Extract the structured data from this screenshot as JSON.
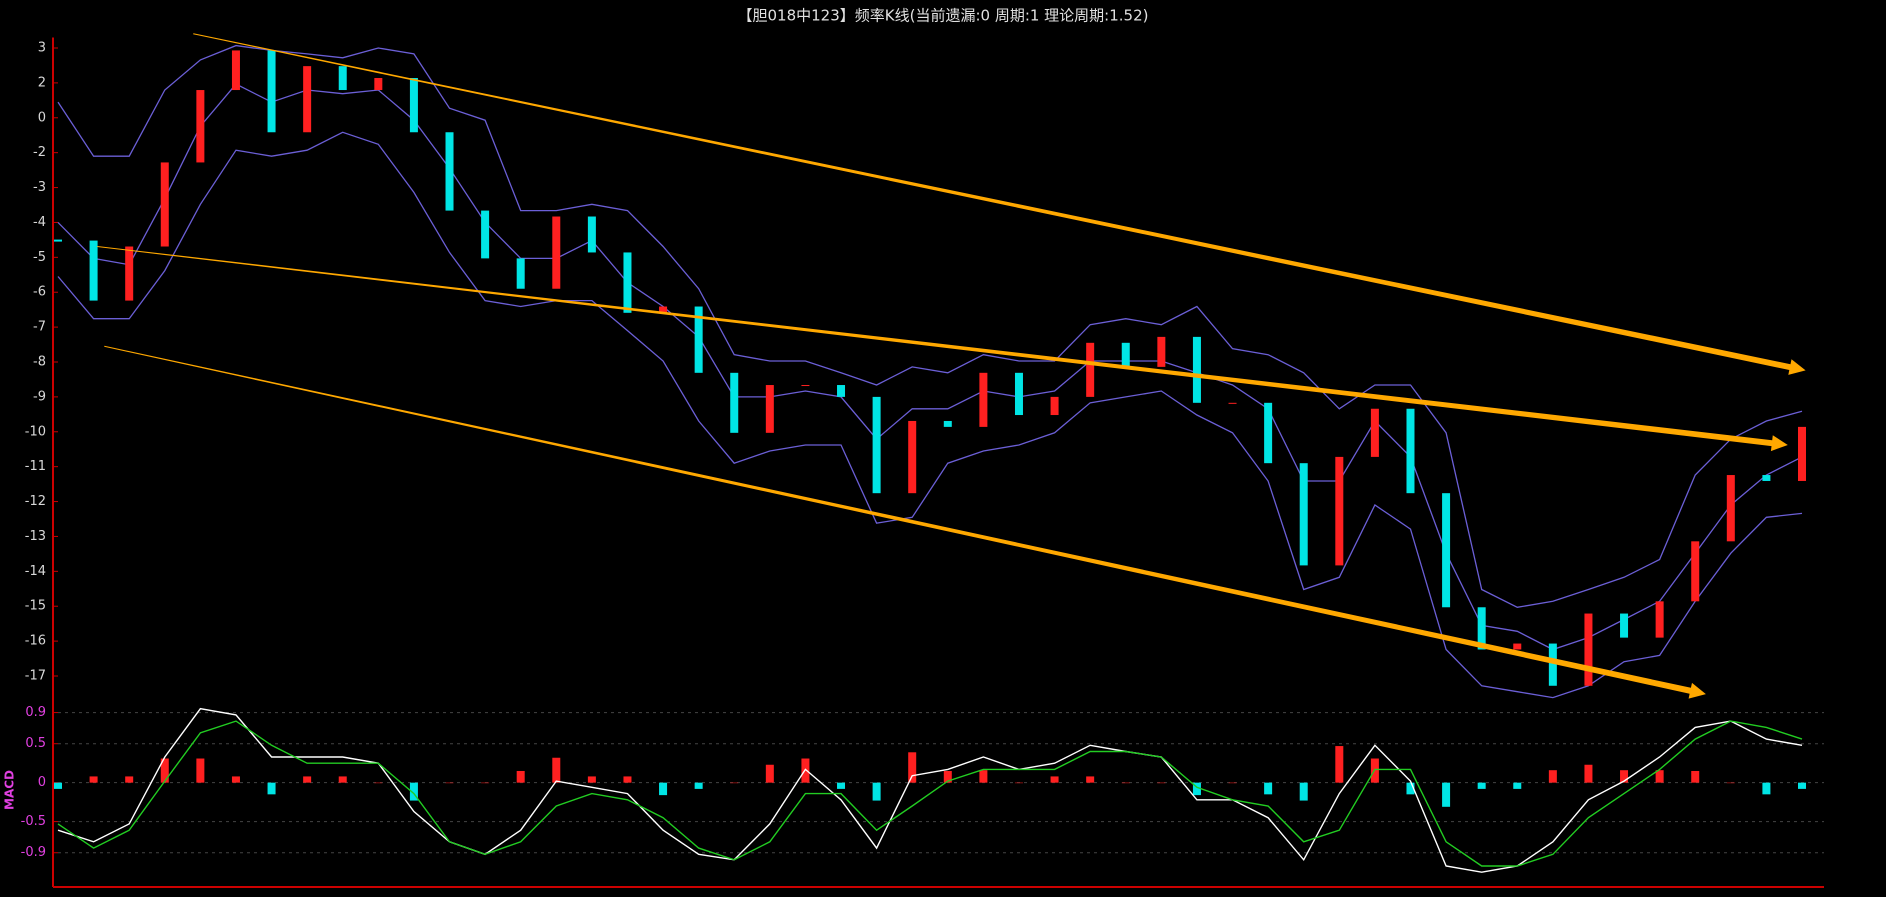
{
  "chart_data": [
    {
      "type": "candlestick",
      "title": "【胆018中123】频率K线(当前遗漏:0 周期:1 理论周期:1.52)",
      "values": [
        -4.52,
        -6.24,
        -4.69,
        -2.28,
        1.59,
        2.93,
        -0.83,
        2.48,
        1.59,
        2.14,
        -0.83,
        -3.66,
        -5.03,
        -5.9,
        -3.83,
        -4.86,
        -6.59,
        -6.41,
        -8.31,
        -10.03,
        -8.66,
        -8.66,
        -9.0,
        -11.76,
        -9.69,
        -9.86,
        -8.31,
        -9.52,
        -9.0,
        -7.45,
        -8.14,
        -7.28,
        -9.17,
        -9.17,
        -10.9,
        -13.83,
        -10.72,
        -9.34,
        -11.76,
        -15.03,
        -16.24,
        -16.07,
        -17.28,
        -15.21,
        -15.9,
        -14.86,
        -13.14,
        -11.24,
        -11.41,
        -9.86
      ],
      "upper": [
        0.9,
        -2.1,
        -2.1,
        1.59,
        2.66,
        3.07,
        2.93,
        2.83,
        2.72,
        3,
        2.83,
        0.55,
        -0.14,
        -3.66,
        -3.66,
        -3.48,
        -3.66,
        -4.69,
        -5.9,
        -7.79,
        -7.97,
        -7.97,
        -8.31,
        -8.66,
        -8.14,
        -8.31,
        -7.79,
        -7.97,
        -7.97,
        -6.93,
        -6.76,
        -6.93,
        -6.41,
        -7.62,
        -7.79,
        -8.31,
        -9.34,
        -8.66,
        -8.66,
        -10.03,
        -14.52,
        -15.03,
        -14.86,
        -14.52,
        -14.17,
        -13.66,
        -11.24,
        -10.21,
        -9.69,
        -9.41
      ],
      "middle": [
        -4.0,
        -5.03,
        -5.21,
        -3.31,
        -0.48,
        1.93,
        0.9,
        1.59,
        1.38,
        1.59,
        -0.14,
        -2.45,
        -4.0,
        -5.03,
        -5.03,
        -4.52,
        -5.72,
        -6.41,
        -7.28,
        -9.0,
        -9.0,
        -8.83,
        -9.0,
        -10.21,
        -9.34,
        -9.34,
        -8.83,
        -9.0,
        -8.83,
        -7.97,
        -7.97,
        -7.97,
        -8.31,
        -8.66,
        -9.34,
        -11.41,
        -11.41,
        -9.69,
        -10.72,
        -13.48,
        -15.55,
        -15.72,
        -16.24,
        -15.9,
        -15.38,
        -14.86,
        -13.48,
        -12.1,
        -11.24,
        -10.72
      ],
      "lower": [
        -5.55,
        -6.76,
        -6.76,
        -5.38,
        -3.48,
        -1.86,
        -2.1,
        -1.86,
        -0.83,
        -1.52,
        -3.14,
        -4.86,
        -6.24,
        -6.41,
        -6.24,
        -6.24,
        -7.1,
        -7.97,
        -9.69,
        -10.9,
        -10.55,
        -10.38,
        -10.38,
        -12.62,
        -12.45,
        -10.9,
        -10.55,
        -10.38,
        -10.03,
        -9.17,
        -9.0,
        -8.83,
        -9.52,
        -10.03,
        -11.41,
        -14.52,
        -14.17,
        -12.1,
        -12.79,
        -16.24,
        -17.28,
        -17.45,
        -17.62,
        -17.28,
        -16.59,
        -16.41,
        -14.86,
        -13.48,
        -12.45,
        -12.34
      ],
      "trend_lines": [
        {
          "start": [
            3.8,
            3.41
          ],
          "end": [
            49.1,
            -8.24
          ]
        },
        {
          "start": [
            1.1,
            -4.69
          ],
          "end": [
            48.6,
            -10.38
          ]
        },
        {
          "start": [
            1.3,
            -7.55
          ],
          "end": [
            46.3,
            -17.52
          ]
        }
      ],
      "ylim": [
        -17.8,
        3.3
      ],
      "yticks": [
        3,
        2,
        0,
        -2,
        -3,
        -4,
        -5,
        -6,
        -7,
        -8,
        -9,
        -10,
        -11,
        -12,
        -13,
        -14,
        -15,
        -16,
        -17
      ],
      "up_color": "#ff2020",
      "down_color": "#00e5e5",
      "band_color": "#6b5fd6",
      "trend_color": "#ffa800"
    },
    {
      "type": "macd",
      "label": "MACD",
      "dif": [
        -0.61,
        -0.76,
        -0.53,
        0.33,
        0.95,
        0.87,
        0.33,
        0.33,
        0.33,
        0.25,
        -0.37,
        -0.76,
        -0.92,
        -0.61,
        0.02,
        -0.06,
        -0.14,
        -0.61,
        -0.92,
        -0.99,
        -0.53,
        0.17,
        -0.22,
        -0.84,
        0.09,
        0.17,
        0.33,
        0.17,
        0.25,
        0.48,
        0.4,
        0.33,
        -0.22,
        -0.22,
        -0.45,
        -0.99,
        -0.14,
        0.48,
        0.02,
        -1.07,
        -1.15,
        -1.07,
        -0.76,
        -0.22,
        0.02,
        0.33,
        0.71,
        0.79,
        0.56,
        0.48
      ],
      "dea": [
        -0.53,
        -0.84,
        -0.61,
        0.02,
        0.64,
        0.79,
        0.48,
        0.25,
        0.25,
        0.25,
        -0.14,
        -0.76,
        -0.92,
        -0.76,
        -0.3,
        -0.14,
        -0.22,
        -0.45,
        -0.84,
        -0.99,
        -0.76,
        -0.14,
        -0.14,
        -0.61,
        -0.3,
        0.02,
        0.17,
        0.17,
        0.17,
        0.4,
        0.4,
        0.33,
        -0.06,
        -0.22,
        -0.3,
        -0.76,
        -0.61,
        0.17,
        0.17,
        -0.76,
        -1.07,
        -1.07,
        -0.92,
        -0.45,
        -0.14,
        0.17,
        0.56,
        0.79,
        0.71,
        0.56
      ],
      "hist": [
        -0.08,
        0.08,
        0.08,
        0.31,
        0.31,
        0.08,
        -0.15,
        0.08,
        0.08,
        0,
        -0.23,
        0,
        0,
        0.15,
        0.32,
        0.08,
        0.08,
        -0.16,
        -0.08,
        0,
        0.23,
        0.31,
        -0.08,
        -0.23,
        0.39,
        0.15,
        0.16,
        0,
        0.08,
        0.08,
        0,
        0,
        -0.16,
        0,
        -0.15,
        -0.23,
        0.47,
        0.31,
        -0.15,
        -0.31,
        -0.08,
        -0.08,
        0.16,
        0.23,
        0.16,
        0.16,
        0.15,
        0,
        -0.15,
        -0.08
      ],
      "ylim": [
        -1.25,
        1.1
      ],
      "yticks": [
        0.9,
        0.5,
        0,
        -0.5,
        -0.9
      ],
      "grid": true,
      "dif_color": "#ffffff",
      "dea_color": "#22cc22",
      "up_color": "#ff2020",
      "down_color": "#00e5e5"
    }
  ]
}
